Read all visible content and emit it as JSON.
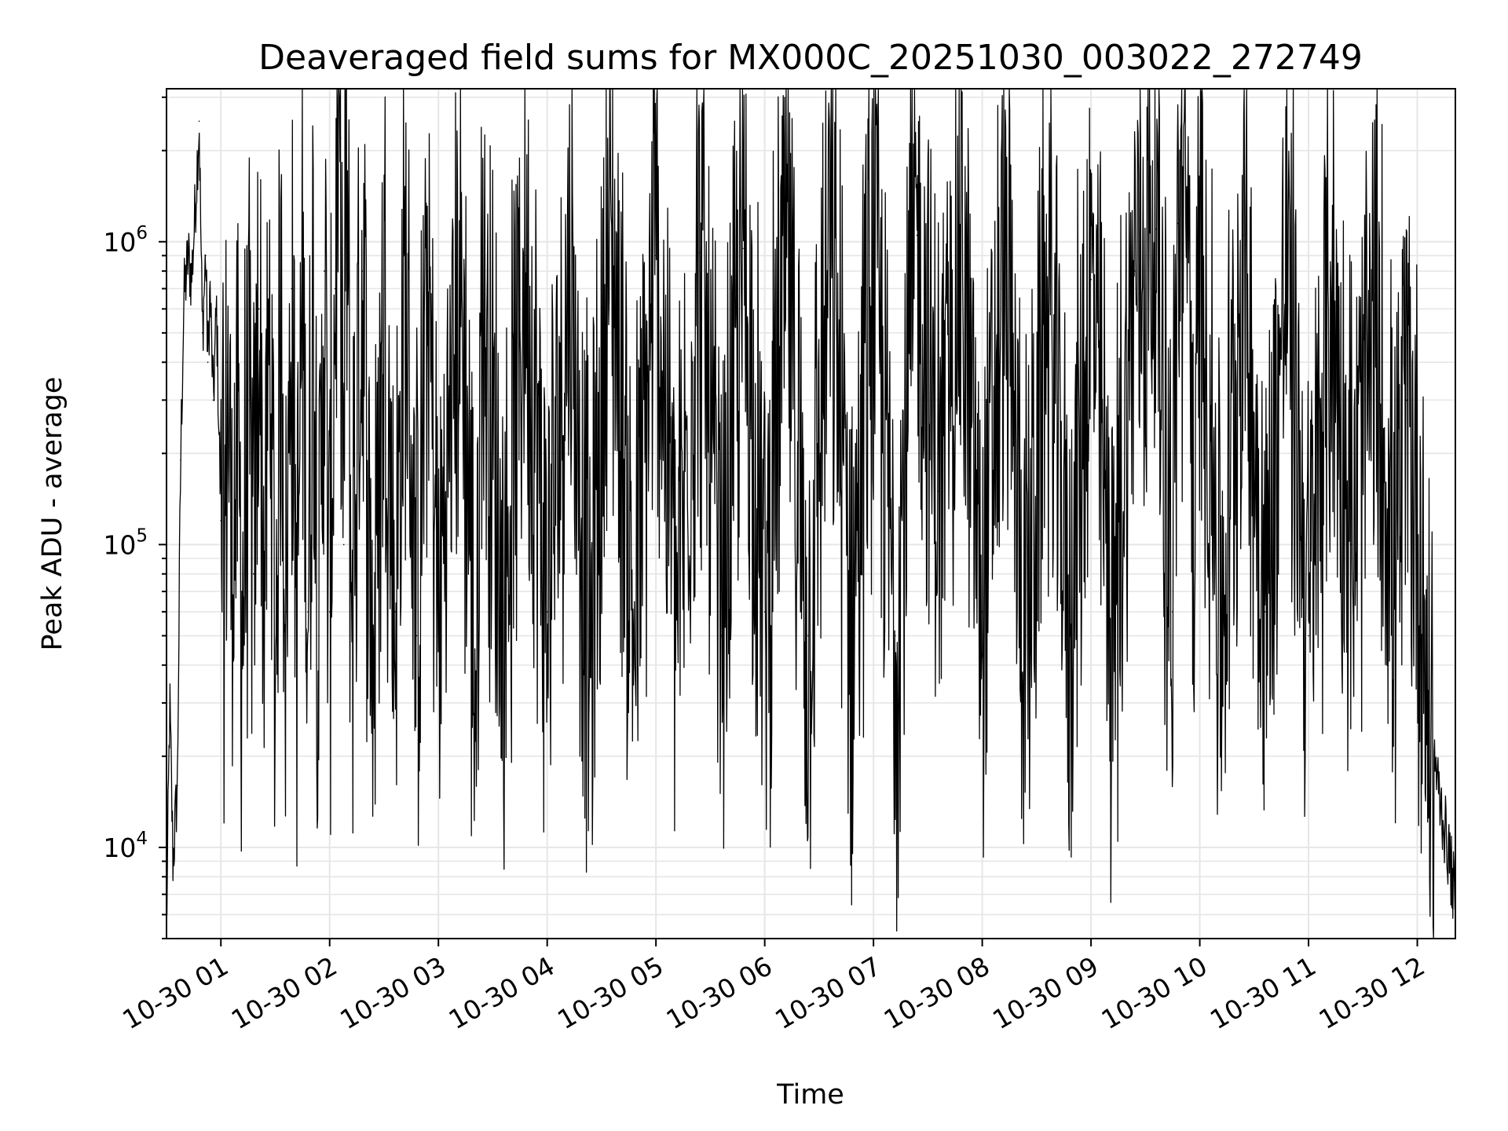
{
  "chart_data": {
    "type": "line",
    "title": "Deaveraged field sums for MX000C_20251030_003022_272749",
    "xlabel": "Time",
    "ylabel": "Peak ADU - average",
    "yscale": "log",
    "ylim": [
      5000,
      3200000
    ],
    "xlim_hours": [
      0.5,
      12.35
    ],
    "grid": true,
    "line_color": "#000000",
    "grid_color": "#e6e6e6",
    "x_ticks": [
      {
        "label": "10-30 01",
        "hour": 1
      },
      {
        "label": "10-30 02",
        "hour": 2
      },
      {
        "label": "10-30 03",
        "hour": 3
      },
      {
        "label": "10-30 04",
        "hour": 4
      },
      {
        "label": "10-30 05",
        "hour": 5
      },
      {
        "label": "10-30 06",
        "hour": 6
      },
      {
        "label": "10-30 07",
        "hour": 7
      },
      {
        "label": "10-30 08",
        "hour": 8
      },
      {
        "label": "10-30 09",
        "hour": 9
      },
      {
        "label": "10-30 10",
        "hour": 10
      },
      {
        "label": "10-30 11",
        "hour": 11
      },
      {
        "label": "10-30 12",
        "hour": 12
      }
    ],
    "y_ticks": [
      {
        "base": "10",
        "exp": "4",
        "value": 10000
      },
      {
        "base": "10",
        "exp": "5",
        "value": 100000
      },
      {
        "base": "10",
        "exp": "6",
        "value": 1000000
      }
    ],
    "series": [
      {
        "name": "deaveraged field sum",
        "x_hours": [
          0.5,
          0.53,
          0.56,
          0.6,
          0.63,
          0.66,
          0.7,
          0.73,
          0.76,
          0.8,
          0.83,
          0.86,
          0.88,
          0.9,
          0.93,
          0.96,
          1.0,
          1.03,
          1.06,
          1.1,
          1.15,
          1.2,
          1.25,
          1.3,
          1.35,
          1.4,
          1.45,
          1.5,
          1.55,
          1.6,
          1.65,
          1.7,
          1.75,
          1.8,
          1.85,
          1.9,
          1.95,
          2.0,
          2.05,
          2.1,
          2.13,
          2.15,
          2.2,
          2.3,
          2.4,
          2.5,
          2.6,
          2.7,
          2.8,
          2.9,
          3.0,
          3.2,
          3.35,
          3.4,
          3.6,
          3.8,
          4.0,
          4.2,
          4.4,
          4.55,
          4.6,
          4.8,
          5.0,
          5.2,
          5.4,
          5.6,
          5.8,
          6.0,
          6.2,
          6.4,
          6.6,
          6.8,
          7.0,
          7.2,
          7.4,
          7.6,
          7.8,
          8.0,
          8.2,
          8.4,
          8.6,
          8.8,
          9.0,
          9.2,
          9.4,
          9.6,
          9.75,
          9.8,
          9.9,
          9.95,
          10.0,
          10.2,
          10.4,
          10.6,
          10.8,
          11.0,
          11.2,
          11.4,
          11.6,
          11.8,
          11.9,
          12.0,
          12.1,
          12.2,
          12.3,
          12.35
        ],
        "values": [
          5200,
          30000,
          9000,
          16000,
          190000,
          650000,
          900000,
          750000,
          1200000,
          2500000,
          500000,
          900000,
          400000,
          700000,
          300000,
          600000,
          120000,
          60000,
          400000,
          90000,
          200000,
          60000,
          300000,
          80000,
          600000,
          70000,
          500000,
          40000,
          650000,
          60000,
          700000,
          50000,
          800000,
          60000,
          750000,
          50000,
          800000,
          60000,
          700000,
          2200000,
          100000,
          2200000,
          70000,
          800000,
          40000,
          700000,
          60000,
          750000,
          50000,
          800000,
          60000,
          850000,
          30000,
          800000,
          60000,
          900000,
          60000,
          850000,
          40000,
          800000,
          1000000,
          50000,
          900000,
          60000,
          920000,
          50000,
          950000,
          60000,
          900000,
          50000,
          950000,
          60000,
          1000000,
          50000,
          1050000,
          150000,
          1000000,
          60000,
          850000,
          50000,
          700000,
          60000,
          750000,
          50000,
          800000,
          1100000,
          60000,
          1150000,
          1300000,
          60000,
          1100000,
          50000,
          1050000,
          60000,
          900000,
          50000,
          700000,
          100000,
          500000,
          80000,
          300000,
          130000,
          30000,
          15000,
          9000,
          6500
        ]
      }
    ]
  }
}
